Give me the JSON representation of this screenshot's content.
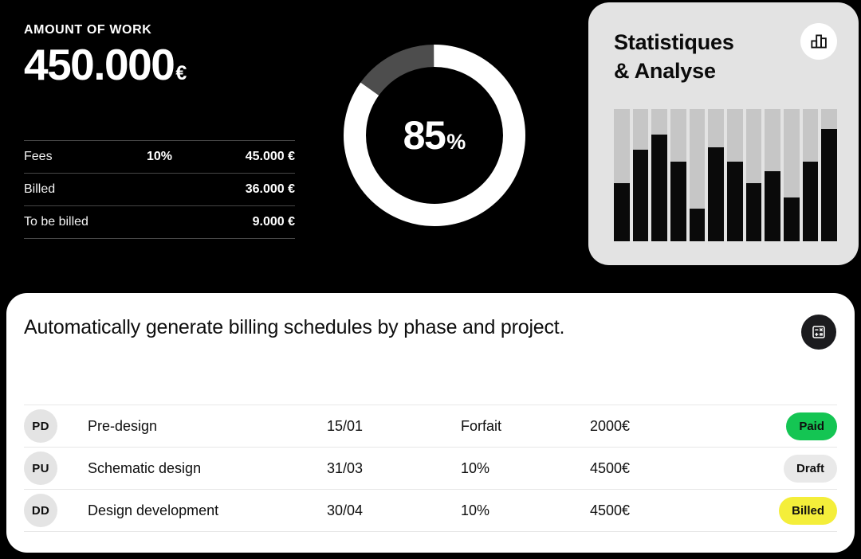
{
  "colors": {
    "page_bg": "#000000",
    "stats_card_bg": "#e3e3e3",
    "billing_card_bg": "#ffffff",
    "donut_fill": "#ffffff",
    "donut_track": "#4d4d4d",
    "bar_fill": "#0a0a0a",
    "bar_track": "#c6c6c6",
    "status_paid": "#14c553",
    "status_draft": "#e9e9e9",
    "status_billed": "#f4ee3a",
    "icon_circle_dark": "#1b1b1e"
  },
  "work_summary": {
    "label": "AMOUNT OF WORK",
    "amount": "450.000",
    "currency_symbol": "€",
    "rows": [
      {
        "label": "Fees",
        "rate": "10%",
        "value": "45.000 €"
      },
      {
        "label": "Billed",
        "rate": "",
        "value": "36.000 €"
      },
      {
        "label": "To be billed",
        "rate": "",
        "value": "9.000 €"
      }
    ]
  },
  "stats_card": {
    "title_line1": "Statistiques",
    "title_line2": "& Analyse",
    "icon": "bar-chart-icon"
  },
  "billing_card": {
    "heading": "Automatically generate billing schedules by phase and project.",
    "icon": "calculator-icon",
    "rows": [
      {
        "initials": "PD",
        "phase": "Pre-design",
        "date": "15/01",
        "terms": "Forfait",
        "amount": "2000€",
        "status": "Paid",
        "status_bg": "#14c553"
      },
      {
        "initials": "PU",
        "phase": "Schematic design",
        "date": "31/03",
        "terms": "10%",
        "amount": "4500€",
        "status": "Draft",
        "status_bg": "#e9e9e9"
      },
      {
        "initials": "DD",
        "phase": "Design development",
        "date": "30/04",
        "terms": "10%",
        "amount": "4500€",
        "status": "Billed",
        "status_bg": "#f4ee3a"
      }
    ]
  },
  "chart_data": [
    {
      "type": "donut",
      "metric": "work completion",
      "percent": 85,
      "value_label": "85",
      "unit": "%",
      "filled_color": "#ffffff",
      "track_color": "#4d4d4d",
      "start": "top, clockwise"
    },
    {
      "type": "bar",
      "title": "Statistiques & Analyse",
      "values": [
        44,
        69,
        81,
        60,
        25,
        71,
        60,
        44,
        53,
        33,
        60,
        85
      ],
      "ylim": [
        0,
        100
      ],
      "categories": [
        "",
        "",
        "",
        "",
        "",
        "",
        "",
        "",
        "",
        "",
        "",
        ""
      ],
      "bar_color": "#0a0a0a",
      "track_color": "#c6c6c6",
      "legend": "none",
      "axes": "none"
    }
  ]
}
